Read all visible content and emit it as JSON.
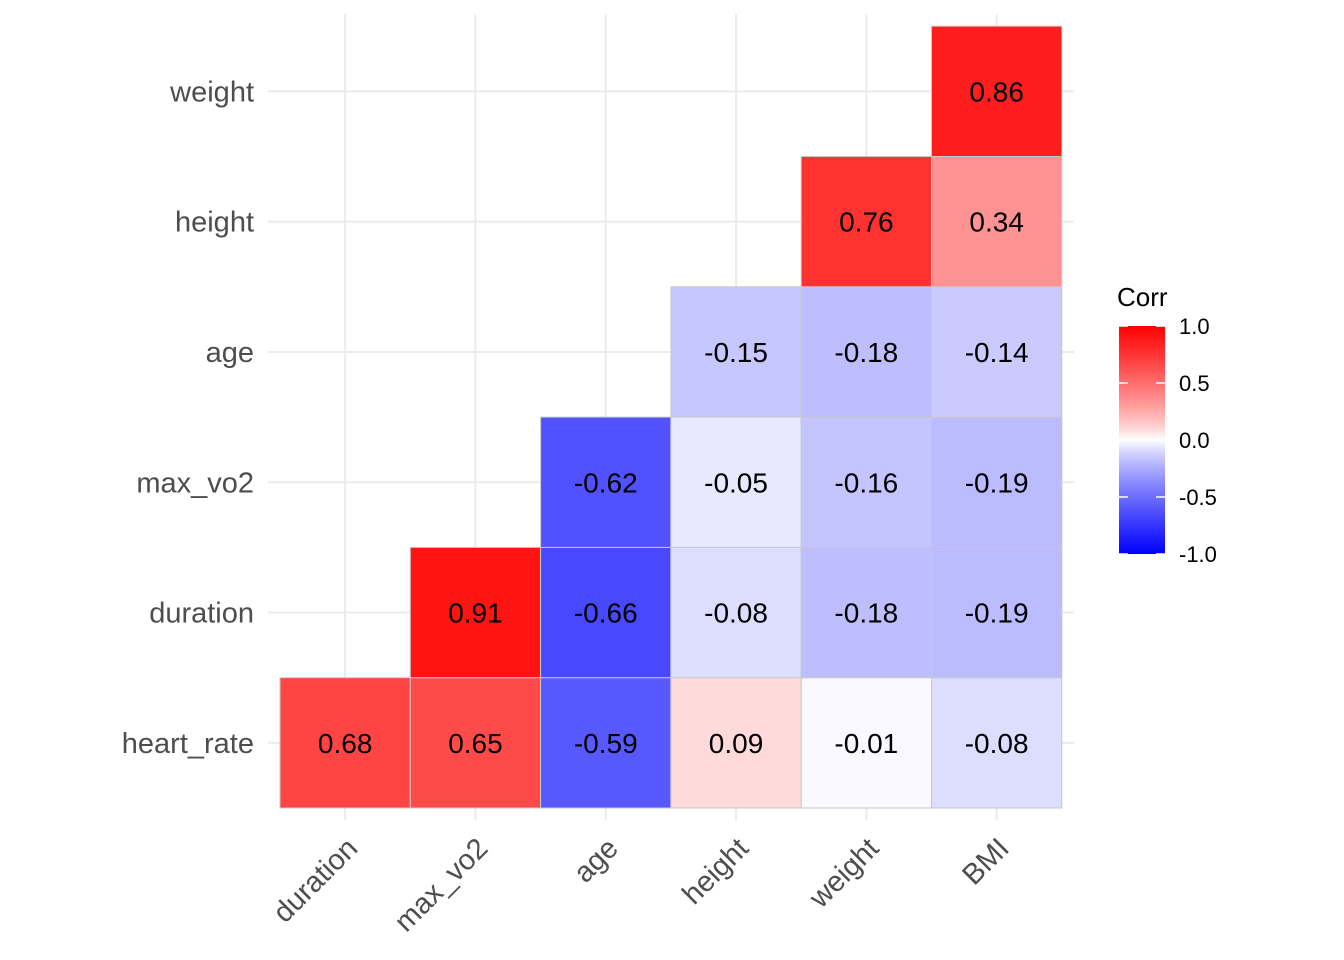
{
  "chart_data": {
    "type": "heatmap",
    "title": "",
    "xlabel": "",
    "ylabel": "",
    "x_categories": [
      "duration",
      "max_vo2",
      "age",
      "height",
      "weight",
      "BMI"
    ],
    "y_categories": [
      "heart_rate",
      "duration",
      "max_vo2",
      "age",
      "height",
      "weight"
    ],
    "cells": [
      {
        "x": "duration",
        "y": "heart_rate",
        "value": 0.68,
        "label": "0.68"
      },
      {
        "x": "max_vo2",
        "y": "heart_rate",
        "value": 0.65,
        "label": "0.65"
      },
      {
        "x": "age",
        "y": "heart_rate",
        "value": -0.59,
        "label": "-0.59"
      },
      {
        "x": "height",
        "y": "heart_rate",
        "value": 0.09,
        "label": "0.09"
      },
      {
        "x": "weight",
        "y": "heart_rate",
        "value": -0.01,
        "label": "-0.01"
      },
      {
        "x": "BMI",
        "y": "heart_rate",
        "value": -0.08,
        "label": "-0.08"
      },
      {
        "x": "max_vo2",
        "y": "duration",
        "value": 0.91,
        "label": "0.91"
      },
      {
        "x": "age",
        "y": "duration",
        "value": -0.66,
        "label": "-0.66"
      },
      {
        "x": "height",
        "y": "duration",
        "value": -0.08,
        "label": "-0.08"
      },
      {
        "x": "weight",
        "y": "duration",
        "value": -0.18,
        "label": "-0.18"
      },
      {
        "x": "BMI",
        "y": "duration",
        "value": -0.19,
        "label": "-0.19"
      },
      {
        "x": "age",
        "y": "max_vo2",
        "value": -0.62,
        "label": "-0.62"
      },
      {
        "x": "height",
        "y": "max_vo2",
        "value": -0.05,
        "label": "-0.05"
      },
      {
        "x": "weight",
        "y": "max_vo2",
        "value": -0.16,
        "label": "-0.16"
      },
      {
        "x": "BMI",
        "y": "max_vo2",
        "value": -0.19,
        "label": "-0.19"
      },
      {
        "x": "height",
        "y": "age",
        "value": -0.15,
        "label": "-0.15"
      },
      {
        "x": "weight",
        "y": "age",
        "value": -0.18,
        "label": "-0.18"
      },
      {
        "x": "BMI",
        "y": "age",
        "value": -0.14,
        "label": "-0.14"
      },
      {
        "x": "weight",
        "y": "height",
        "value": 0.76,
        "label": "0.76"
      },
      {
        "x": "BMI",
        "y": "height",
        "value": 0.34,
        "label": "0.34"
      },
      {
        "x": "BMI",
        "y": "weight",
        "value": 0.86,
        "label": "0.86"
      }
    ],
    "color_scale": {
      "low": "#0000ff",
      "mid": "#ffffff",
      "high": "#ff0000",
      "domain": [
        -1.0,
        1.0
      ],
      "midpoint": 0
    },
    "grid": true,
    "legend": {
      "title": "Corr",
      "placement": "right",
      "ticks": [
        {
          "value": 1.0,
          "label": "1.0"
        },
        {
          "value": 0.5,
          "label": "0.5"
        },
        {
          "value": 0.0,
          "label": "0.0"
        },
        {
          "value": -0.5,
          "label": "-0.5"
        },
        {
          "value": -1.0,
          "label": "-1.0"
        }
      ]
    }
  }
}
